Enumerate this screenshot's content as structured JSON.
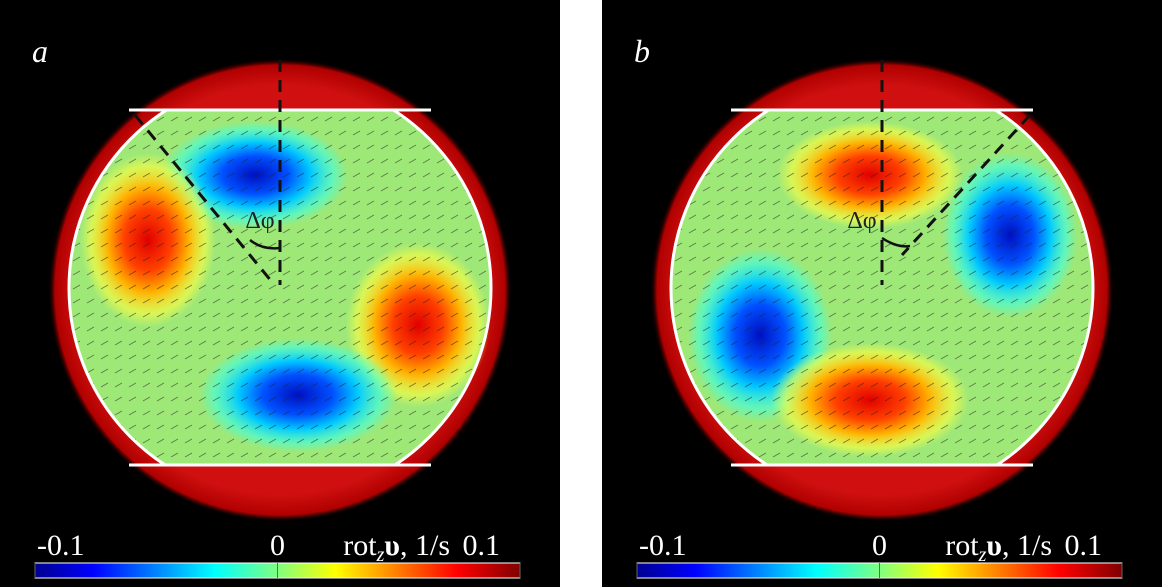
{
  "panels": [
    {
      "label": "a",
      "angle_label": "Δφ"
    },
    {
      "label": "b",
      "angle_label": "Δφ"
    }
  ],
  "colorbar": {
    "min": -0.1,
    "max": 0.1,
    "ticks": [
      -0.1,
      0,
      0.1
    ],
    "title": "rot",
    "subscript": "z",
    "symbol": "υ",
    "unit": ", 1/s"
  }
}
